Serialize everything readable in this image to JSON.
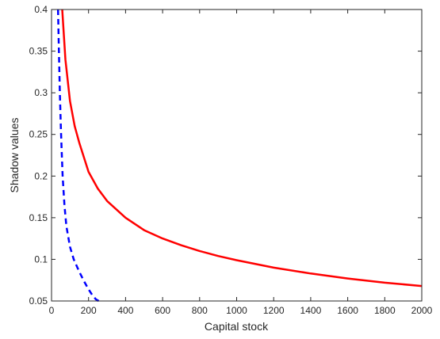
{
  "chart_data": {
    "type": "line",
    "xlabel": "Capital stock",
    "ylabel": "Shadow values",
    "xlim": [
      0,
      2000
    ],
    "ylim": [
      0.05,
      0.4
    ],
    "xticks": [
      0,
      200,
      400,
      600,
      800,
      1000,
      1200,
      1400,
      1600,
      1800,
      2000
    ],
    "xtick_labels": [
      "0",
      "200",
      "400",
      "600",
      "800",
      "1000",
      "1200",
      "1400",
      "1600",
      "1800",
      "2000"
    ],
    "yticks": [
      0.05,
      0.1,
      0.15,
      0.2,
      0.25,
      0.3,
      0.35,
      0.4
    ],
    "ytick_labels": [
      "0.05",
      "0.1",
      "0.15",
      "0.2",
      "0.25",
      "0.3",
      "0.35",
      "0.4"
    ],
    "grid": false,
    "legend": "none",
    "series": [
      {
        "color": "#ff0000",
        "style": "solid",
        "x": [
          58,
          75,
          100,
          125,
          150,
          200,
          250,
          300,
          400,
          500,
          600,
          700,
          800,
          900,
          1000,
          1200,
          1400,
          1600,
          1800,
          2000
        ],
        "y": [
          0.4,
          0.34,
          0.29,
          0.26,
          0.24,
          0.205,
          0.185,
          0.17,
          0.15,
          0.135,
          0.125,
          0.117,
          0.11,
          0.104,
          0.099,
          0.09,
          0.083,
          0.077,
          0.072,
          0.068
        ]
      },
      {
        "color": "#0000ff",
        "style": "dashed",
        "x": [
          35,
          40,
          45,
          50,
          55,
          60,
          70,
          80,
          100,
          120,
          150,
          180,
          200,
          220,
          240,
          255
        ],
        "y": [
          0.4,
          0.35,
          0.3,
          0.26,
          0.23,
          0.2,
          0.165,
          0.14,
          0.115,
          0.1,
          0.085,
          0.072,
          0.064,
          0.057,
          0.052,
          0.05
        ]
      }
    ]
  }
}
